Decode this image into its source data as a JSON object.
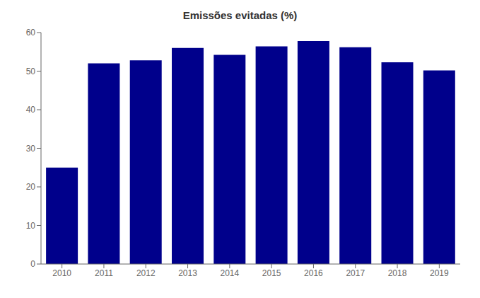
{
  "chart_data": {
    "type": "bar",
    "title": "Emissões evitadas (%)",
    "categories": [
      "2010",
      "2011",
      "2012",
      "2013",
      "2014",
      "2015",
      "2016",
      "2017",
      "2018",
      "2019"
    ],
    "values": [
      25.0,
      52.0,
      52.8,
      56.0,
      54.2,
      56.4,
      57.8,
      56.2,
      52.3,
      50.2
    ],
    "color": "#00008B",
    "ylim": [
      0,
      60
    ],
    "yticks": [
      0,
      10,
      20,
      30,
      40,
      50,
      60
    ],
    "grid": false
  }
}
